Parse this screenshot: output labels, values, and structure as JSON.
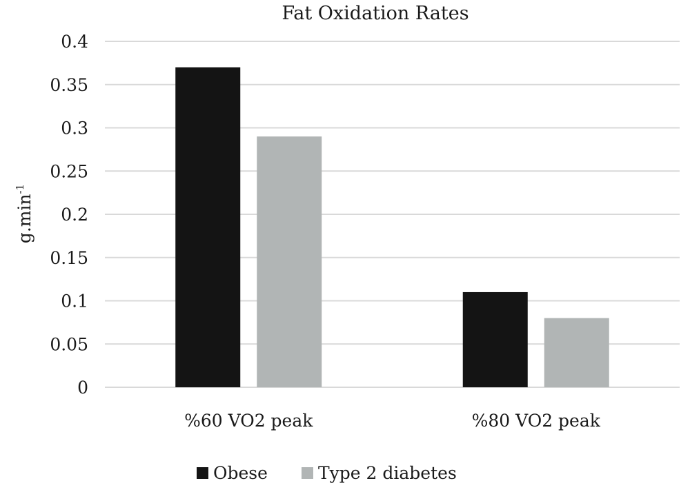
{
  "chart_data": {
    "type": "bar",
    "title": "Fat Oxidation Rates",
    "xlabel": "",
    "ylabel": "g.min",
    "ylabel_superscript": "-1",
    "categories": [
      "%60 VO2 peak",
      "%80 VO2 peak"
    ],
    "series": [
      {
        "name": "Obese",
        "values": [
          0.37,
          0.11
        ],
        "color": "#141414"
      },
      {
        "name": "Type 2 diabetes",
        "values": [
          0.29,
          0.08
        ],
        "color": "#b1b5b5"
      }
    ],
    "ylim": [
      0,
      0.4
    ],
    "yticks": [
      "0",
      "0.05",
      "0.1",
      "0.15",
      "0.2",
      "0.25",
      "0.3",
      "0.35",
      "0.4"
    ],
    "grid": true,
    "legend_position": "bottom"
  }
}
